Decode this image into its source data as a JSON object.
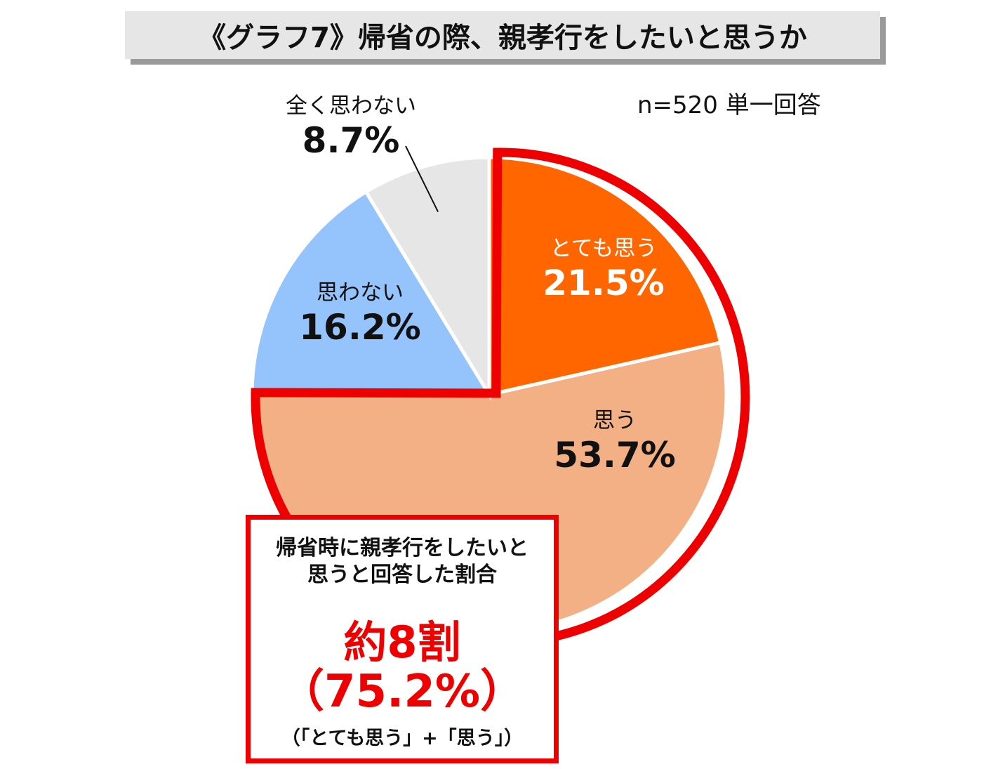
{
  "title": "《グラフ7》帰省の際、親孝行をしたいと思うか",
  "sample_note": "n=520  単一回答",
  "chart_data": {
    "type": "pie",
    "title": "《グラフ7》帰省の際、親孝行をしたいと思うか",
    "slices": [
      {
        "label": "とても思う",
        "value": 21.5,
        "display": "21.5%",
        "color": "#ff6600",
        "text_color": "#ffffff"
      },
      {
        "label": "思う",
        "value": 53.7,
        "display": "53.7%",
        "color": "#f3b085",
        "text_color": "#111111"
      },
      {
        "label": "思わない",
        "value": 16.2,
        "display": "16.2%",
        "color": "#95c3fb",
        "text_color": "#111111"
      },
      {
        "label": "全く思わない",
        "value": 8.7,
        "display": "8.7%",
        "color": "#e6e6e6",
        "text_color": "#111111"
      }
    ],
    "highlight_color": "#ee0000"
  },
  "callout": {
    "line1": "帰省時に親孝行をしたいと",
    "line2": "思うと回答した割合",
    "big": "約8割",
    "big_pct": "（75.2%）",
    "note": "（「とても思う」+「思う」）"
  }
}
